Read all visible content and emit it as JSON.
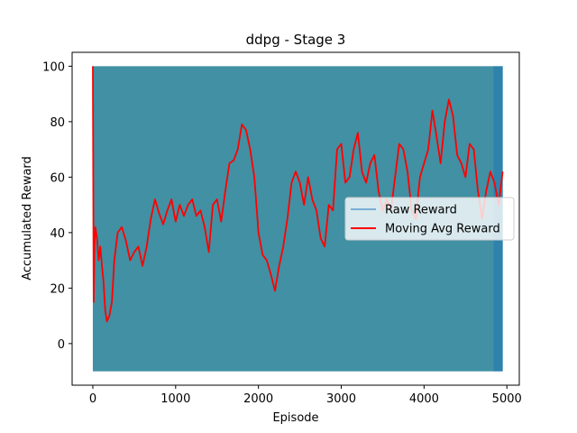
{
  "chart_data": {
    "type": "line",
    "title": "ddpg - Stage 3",
    "xlabel": "Episode",
    "ylabel": "Accumulated Reward",
    "xlim": [
      -250,
      5150
    ],
    "ylim": [
      -15,
      105
    ],
    "xticks": [
      0,
      1000,
      2000,
      3000,
      4000,
      5000
    ],
    "yticks": [
      0,
      20,
      40,
      60,
      80,
      100
    ],
    "grid": false,
    "legend_position": "center-right",
    "series": [
      {
        "name": "Raw Reward",
        "color": "#1f77b4",
        "overlay_color": "#4190a3",
        "style": "dense band oscillating between min and max",
        "x_range": [
          0,
          4950
        ],
        "y_min": -10,
        "y_max": 100
      },
      {
        "name": "Moving Avg Reward",
        "color": "#ff0000",
        "x": [
          0,
          5,
          10,
          20,
          30,
          50,
          70,
          90,
          110,
          130,
          150,
          170,
          200,
          230,
          260,
          300,
          350,
          400,
          450,
          500,
          550,
          600,
          650,
          700,
          750,
          800,
          850,
          900,
          950,
          1000,
          1050,
          1100,
          1150,
          1200,
          1250,
          1300,
          1350,
          1400,
          1450,
          1500,
          1550,
          1600,
          1650,
          1700,
          1750,
          1800,
          1850,
          1900,
          1950,
          2000,
          2050,
          2100,
          2150,
          2200,
          2250,
          2300,
          2350,
          2400,
          2450,
          2500,
          2550,
          2600,
          2650,
          2700,
          2750,
          2800,
          2850,
          2900,
          2950,
          3000,
          3050,
          3100,
          3150,
          3200,
          3250,
          3300,
          3350,
          3400,
          3450,
          3500,
          3550,
          3600,
          3650,
          3700,
          3750,
          3800,
          3850,
          3900,
          3950,
          4000,
          4050,
          4100,
          4150,
          4200,
          4250,
          4300,
          4350,
          4400,
          4450,
          4500,
          4550,
          4600,
          4650,
          4700,
          4750,
          4800,
          4850,
          4900,
          4950
        ],
        "y": [
          100,
          60,
          15,
          35,
          42,
          38,
          30,
          35,
          28,
          22,
          12,
          8,
          10,
          15,
          30,
          40,
          42,
          37,
          30,
          33,
          35,
          28,
          35,
          45,
          52,
          47,
          43,
          48,
          52,
          44,
          50,
          46,
          50,
          52,
          46,
          48,
          42,
          33,
          50,
          52,
          44,
          55,
          65,
          66,
          70,
          79,
          77,
          70,
          60,
          40,
          32,
          30,
          25,
          19,
          28,
          35,
          45,
          58,
          62,
          58,
          50,
          60,
          52,
          48,
          38,
          35,
          50,
          48,
          70,
          72,
          58,
          60,
          70,
          76,
          62,
          58,
          65,
          68,
          55,
          48,
          52,
          48,
          60,
          72,
          70,
          62,
          48,
          45,
          60,
          65,
          70,
          84,
          75,
          65,
          80,
          88,
          82,
          68,
          65,
          60,
          72,
          70,
          55,
          45,
          55,
          62,
          58,
          50,
          62
        ]
      }
    ]
  }
}
